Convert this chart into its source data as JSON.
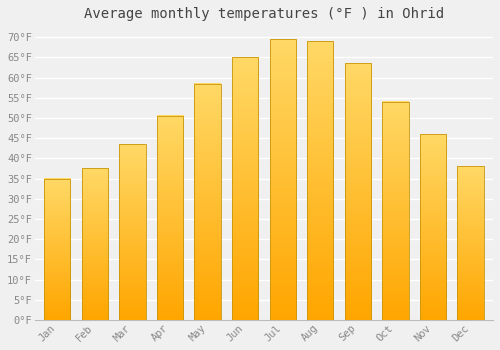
{
  "title": "Average monthly temperatures (°F ) in Ohrid",
  "months": [
    "Jan",
    "Feb",
    "Mar",
    "Apr",
    "May",
    "Jun",
    "Jul",
    "Aug",
    "Sep",
    "Oct",
    "Nov",
    "Dec"
  ],
  "values": [
    35,
    37.5,
    43.5,
    50.5,
    58.5,
    65,
    69.5,
    69,
    63.5,
    54,
    46,
    38
  ],
  "bar_color_bottom": "#FFA500",
  "bar_color_top": "#FFD966",
  "bar_edge_color": "#C8960C",
  "background_color": "#f0f0f0",
  "grid_color": "#ffffff",
  "text_color": "#888888",
  "title_color": "#444444",
  "ylim": [
    0,
    72
  ],
  "yticks": [
    0,
    5,
    10,
    15,
    20,
    25,
    30,
    35,
    40,
    45,
    50,
    55,
    60,
    65,
    70
  ],
  "title_fontsize": 10,
  "tick_fontsize": 7.5,
  "font_family": "monospace",
  "bar_width": 0.7
}
